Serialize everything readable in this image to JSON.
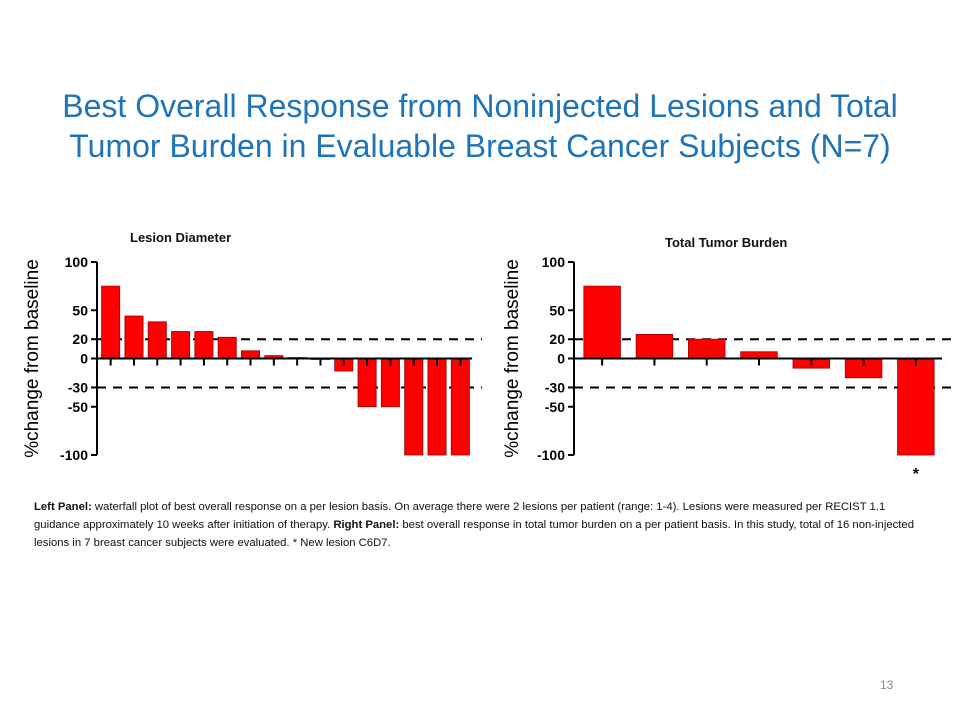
{
  "slide": {
    "title": "Best Overall Response from Noninjected Lesions and Total Tumor Burden in Evaluable Breast Cancer Subjects (N=7)",
    "page_number": "13",
    "caption": {
      "left_label": "Left Panel:",
      "left_text": " waterfall plot of best overall response on a per lesion basis. On average there were 2 lesions per patient (range: 1-4). Lesions were measured per RECIST 1.1 guidance approximately 10 weeks after initiation of therapy. ",
      "right_label": "Right Panel:",
      "right_text": " best overall response in total tumor burden on a per patient basis. In this study, total of 16 non-injected lesions in 7 breast cancer subjects were evaluated. * New lesion C6D7."
    }
  },
  "colors": {
    "title": "#1f74b8",
    "bar": "#ff0000",
    "bar_outline": "#a00000"
  },
  "chart_data": [
    {
      "type": "bar",
      "title": "Lesion Diameter",
      "ylabel": "%change from baseline",
      "ylim": [
        -100,
        100
      ],
      "yticks": [
        100,
        50,
        20,
        0,
        -30,
        -50,
        -100
      ],
      "reference_lines": [
        20,
        -30
      ],
      "values": [
        75,
        44,
        38,
        28,
        28,
        22,
        8,
        3,
        1,
        -1,
        -13,
        -50,
        -50,
        -100,
        -100,
        -100
      ],
      "annotations": []
    },
    {
      "type": "bar",
      "title": "Total Tumor Burden",
      "ylabel": "%change from baseline",
      "ylim": [
        -100,
        100
      ],
      "yticks": [
        100,
        50,
        20,
        0,
        -30,
        -50,
        -100
      ],
      "reference_lines": [
        20,
        -30
      ],
      "values": [
        75,
        25,
        20,
        7,
        -10,
        -20,
        -100
      ],
      "annotations": [
        {
          "bar_index": 6,
          "text": "*"
        }
      ]
    }
  ]
}
